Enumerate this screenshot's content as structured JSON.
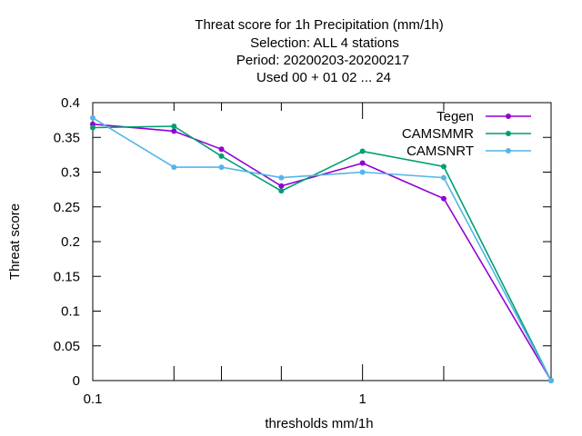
{
  "chart_data": {
    "type": "line",
    "title_lines": [
      "Threat score  for 1h Precipitation (mm/1h)",
      "Selection: ALL      4 stations",
      "Period: 20200203-20200217",
      "Used  00 + 01 02 ... 24"
    ],
    "xlabel": "thresholds mm/1h",
    "ylabel": "Threat score",
    "xscale": "log",
    "xlim": [
      0.1,
      5
    ],
    "ylim": [
      0,
      0.4
    ],
    "y_ticks": [
      0,
      0.05,
      0.1,
      0.15,
      0.2,
      0.25,
      0.3,
      0.35,
      0.4
    ],
    "y_tick_labels": [
      "0",
      "0.05",
      "0.1",
      "0.15",
      "0.2",
      "0.25",
      "0.3",
      "0.35",
      "0.4"
    ],
    "x_major_ticks": [
      0.1,
      1
    ],
    "x_major_tick_labels": [
      "0.1",
      "1"
    ],
    "x_minor_ticks": [
      0.2,
      0.3,
      0.5,
      2
    ],
    "grid": false,
    "legend_position": "top-right",
    "series": [
      {
        "name": "Tegen",
        "color": "#9400d3",
        "x": [
          0.1,
          0.2,
          0.3,
          0.5,
          1,
          2,
          5
        ],
        "y": [
          0.369,
          0.359,
          0.333,
          0.28,
          0.313,
          0.262,
          0.0
        ]
      },
      {
        "name": "CAMSMMR",
        "color": "#009e73",
        "x": [
          0.1,
          0.2,
          0.3,
          0.5,
          1,
          2,
          5
        ],
        "y": [
          0.364,
          0.366,
          0.323,
          0.273,
          0.33,
          0.308,
          0.0
        ]
      },
      {
        "name": "CAMSNRT",
        "color": "#56b4e9",
        "x": [
          0.1,
          0.2,
          0.3,
          0.5,
          1,
          2,
          5
        ],
        "y": [
          0.378,
          0.307,
          0.307,
          0.292,
          0.3,
          0.292,
          0.0
        ]
      }
    ]
  }
}
